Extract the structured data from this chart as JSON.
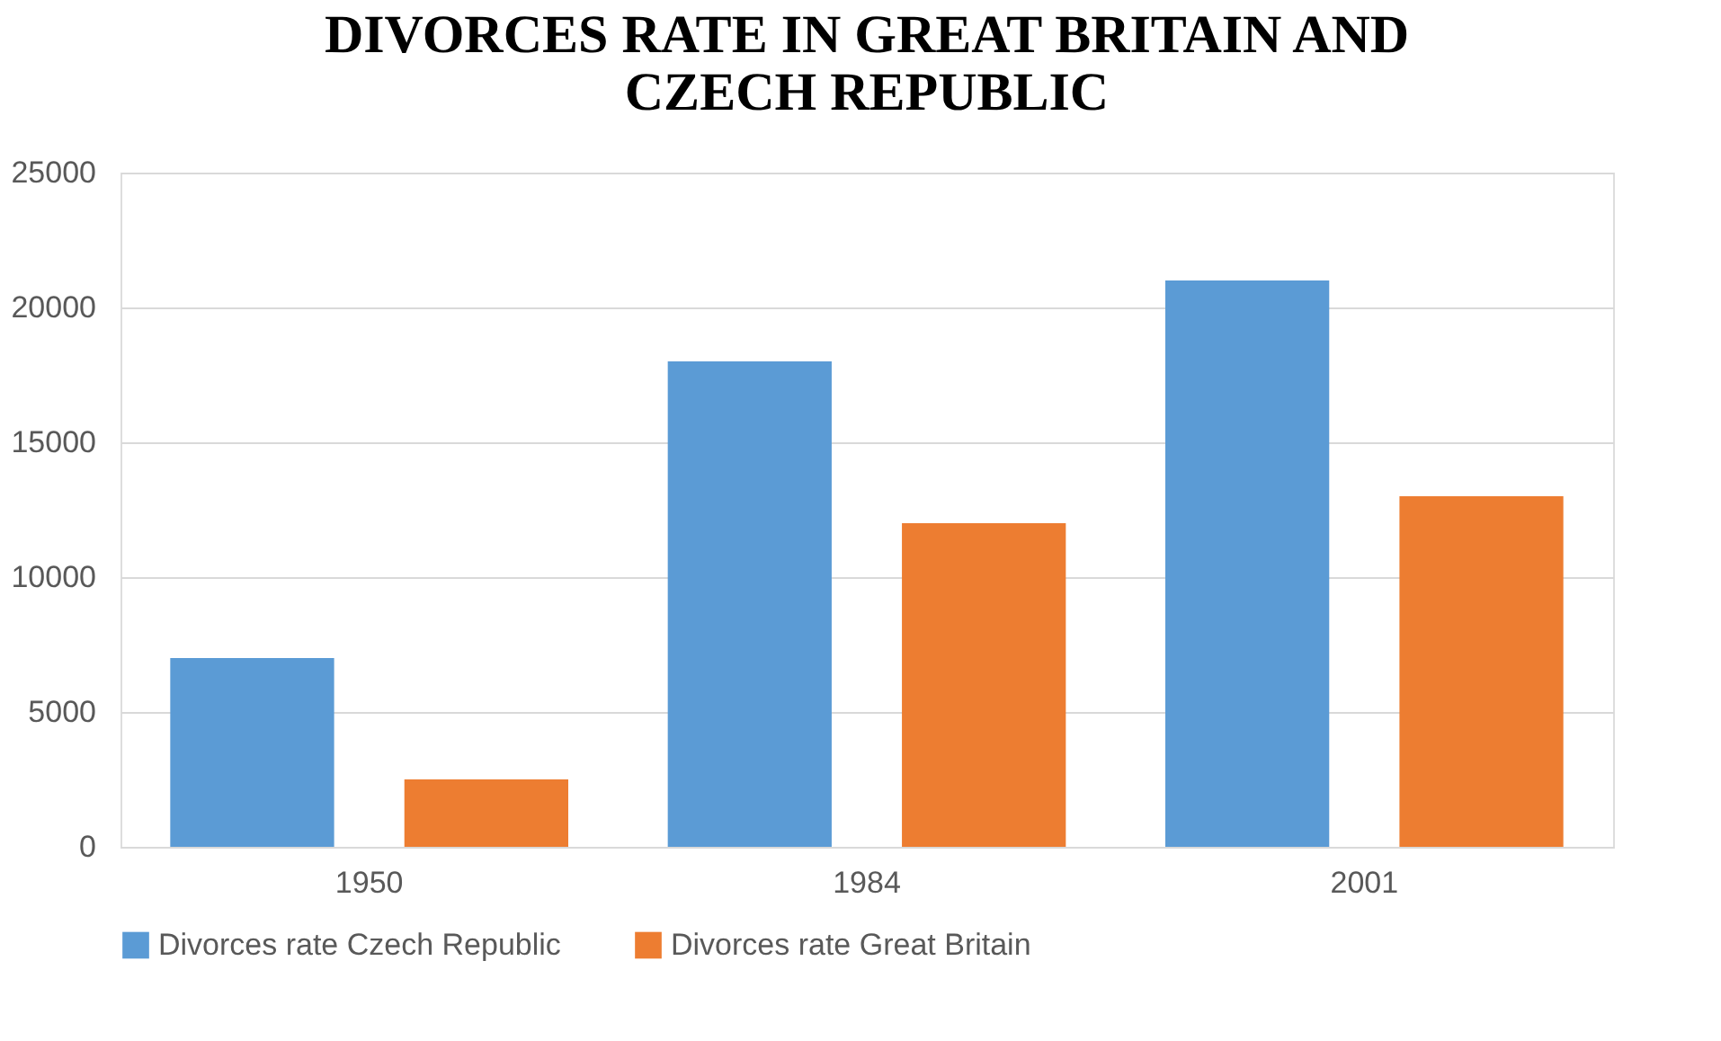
{
  "chart_data": {
    "type": "bar",
    "title": "DIVORCES RATE IN GREAT BRITAIN AND CZECH REPUBLIC",
    "categories": [
      "1950",
      "1984",
      "2001"
    ],
    "series": [
      {
        "name": "Divorces rate Czech Republic",
        "color": "#5b9bd5",
        "values": [
          7000,
          18000,
          21000
        ]
      },
      {
        "name": "Divorces rate Great Britain",
        "color": "#ed7d31",
        "values": [
          2500,
          12000,
          13000
        ]
      }
    ],
    "ylim": [
      0,
      25000
    ],
    "yticks": [
      0,
      5000,
      10000,
      15000,
      20000,
      25000
    ],
    "grid": "y",
    "legend": "bottom"
  }
}
